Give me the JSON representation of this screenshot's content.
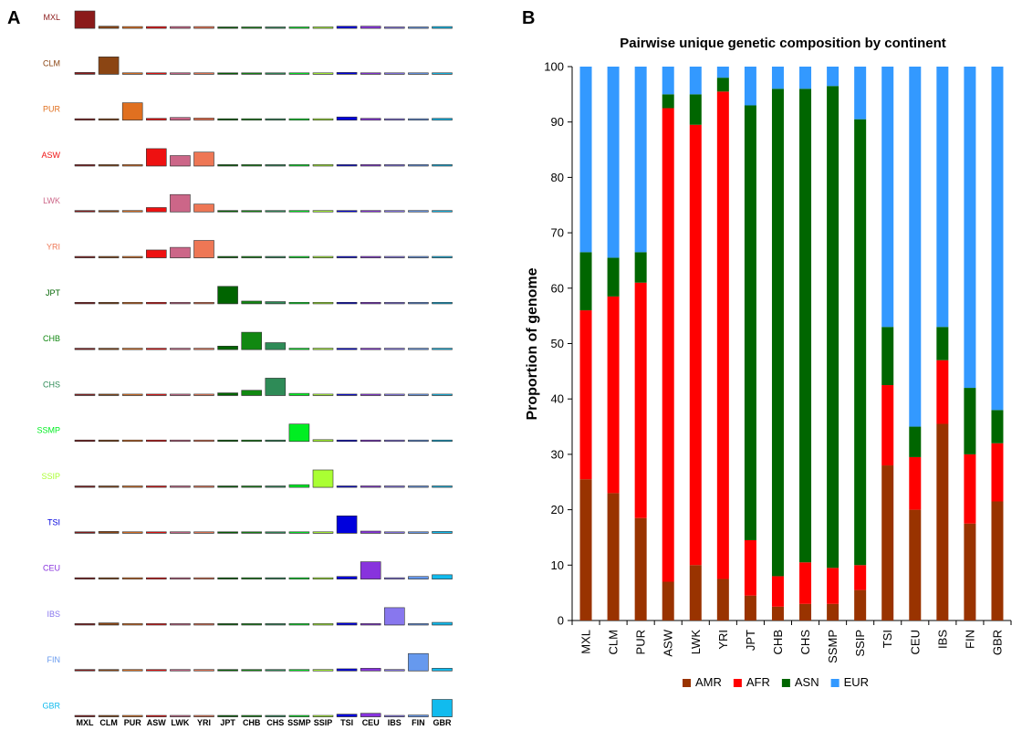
{
  "panel_a_letter": "A",
  "panel_b_letter": "B",
  "chart_data": [
    {
      "type": "heatmap",
      "panel": "A",
      "rows": [
        "MXL",
        "CLM",
        "PUR",
        "ASW",
        "LWK",
        "YRI",
        "JPT",
        "CHB",
        "CHS",
        "SSMP",
        "SSIP",
        "TSI",
        "CEU",
        "IBS",
        "FIN",
        "GBR"
      ],
      "columns": [
        "MXL",
        "CLM",
        "PUR",
        "ASW",
        "LWK",
        "YRI",
        "JPT",
        "CHB",
        "CHS",
        "SSMP",
        "SSIP",
        "TSI",
        "CEU",
        "IBS",
        "FIN",
        "GBR"
      ],
      "row_colors": [
        "#8b1a1a",
        "#8b4513",
        "#e07020",
        "#ee1111",
        "#cc6688",
        "#ee7755",
        "#006400",
        "#118811",
        "#2e8b57",
        "#00ee22",
        "#aaff33",
        "#0000dd",
        "#8833dd",
        "#8877ee",
        "#6699ee",
        "#11bbee"
      ],
      "values": [
        [
          1.0,
          0.12,
          0.1,
          0.1,
          0.1,
          0.1,
          0.03,
          0.03,
          0.03,
          0.02,
          0.02,
          0.12,
          0.12,
          0.03,
          0.03,
          0.1
        ],
        [
          0.1,
          1.0,
          0.08,
          0.08,
          0.08,
          0.08,
          0.03,
          0.03,
          0.03,
          0.02,
          0.02,
          0.1,
          0.08,
          0.03,
          0.03,
          0.08
        ],
        [
          0.08,
          0.06,
          1.0,
          0.1,
          0.15,
          0.12,
          0.03,
          0.03,
          0.03,
          0.02,
          0.02,
          0.18,
          0.1,
          0.08,
          0.06,
          0.1
        ],
        [
          0.03,
          0.03,
          0.03,
          1.0,
          0.6,
          0.8,
          0.02,
          0.02,
          0.02,
          0.02,
          0.02,
          0.03,
          0.03,
          0.02,
          0.02,
          0.03
        ],
        [
          0.02,
          0.03,
          0.03,
          0.25,
          1.0,
          0.45,
          0.02,
          0.02,
          0.02,
          0.02,
          0.02,
          0.02,
          0.02,
          0.02,
          0.02,
          0.02
        ],
        [
          0.03,
          0.03,
          0.03,
          0.45,
          0.6,
          1.0,
          0.02,
          0.02,
          0.02,
          0.02,
          0.02,
          0.02,
          0.02,
          0.02,
          0.02,
          0.02
        ],
        [
          0.02,
          0.02,
          0.02,
          0.02,
          0.02,
          0.02,
          1.0,
          0.15,
          0.12,
          0.05,
          0.02,
          0.02,
          0.02,
          0.02,
          0.02,
          0.02
        ],
        [
          0.02,
          0.02,
          0.02,
          0.02,
          0.02,
          0.02,
          0.2,
          1.0,
          0.4,
          0.08,
          0.02,
          0.02,
          0.02,
          0.02,
          0.02,
          0.02
        ],
        [
          0.03,
          0.03,
          0.03,
          0.03,
          0.03,
          0.03,
          0.15,
          0.3,
          1.0,
          0.12,
          0.02,
          0.03,
          0.03,
          0.02,
          0.03,
          0.03
        ],
        [
          0.02,
          0.02,
          0.02,
          0.02,
          0.02,
          0.02,
          0.03,
          0.05,
          0.05,
          1.0,
          0.1,
          0.02,
          0.02,
          0.02,
          0.02,
          0.02
        ],
        [
          0.02,
          0.02,
          0.02,
          0.02,
          0.02,
          0.02,
          0.02,
          0.02,
          0.02,
          0.15,
          1.0,
          0.02,
          0.02,
          0.02,
          0.02,
          0.02
        ],
        [
          0.08,
          0.1,
          0.08,
          0.05,
          0.08,
          0.05,
          0.02,
          0.02,
          0.02,
          0.02,
          0.02,
          1.0,
          0.12,
          0.05,
          0.08,
          0.1
        ],
        [
          0.05,
          0.06,
          0.05,
          0.05,
          0.05,
          0.03,
          0.02,
          0.02,
          0.02,
          0.02,
          0.02,
          0.15,
          1.0,
          0.03,
          0.15,
          0.25
        ],
        [
          0.08,
          0.12,
          0.08,
          0.05,
          0.05,
          0.03,
          0.02,
          0.02,
          0.02,
          0.02,
          0.02,
          0.12,
          0.08,
          1.0,
          0.05,
          0.15
        ],
        [
          0.02,
          0.02,
          0.02,
          0.02,
          0.02,
          0.02,
          0.02,
          0.02,
          0.02,
          0.02,
          0.02,
          0.12,
          0.15,
          0.02,
          1.0,
          0.15
        ],
        [
          0.05,
          0.05,
          0.05,
          0.03,
          0.05,
          0.03,
          0.02,
          0.02,
          0.02,
          0.02,
          0.02,
          0.15,
          0.2,
          0.02,
          0.1,
          1.0
        ]
      ]
    },
    {
      "type": "bar",
      "stacked": true,
      "panel": "B",
      "title": "Pairwise unique genetic composition by continent",
      "xlabel": "",
      "ylabel": "Proportion of genome",
      "ylim": [
        0,
        100
      ],
      "yticks": [
        0,
        10,
        20,
        30,
        40,
        50,
        60,
        70,
        80,
        90,
        100
      ],
      "grid": false,
      "legend_position": "bottom",
      "categories": [
        "MXL",
        "CLM",
        "PUR",
        "ASW",
        "LWK",
        "YRI",
        "JPT",
        "CHB",
        "CHS",
        "SSMP",
        "SSIP",
        "TSI",
        "CEU",
        "IBS",
        "FIN",
        "GBR"
      ],
      "series": [
        {
          "name": "AMR",
          "color": "#993300",
          "values": [
            25.5,
            23,
            18.5,
            7,
            10,
            7.5,
            4.5,
            2.5,
            3,
            3,
            5.5,
            28,
            20,
            35.5,
            17.5,
            21.5
          ]
        },
        {
          "name": "AFR",
          "color": "#ff0000",
          "values": [
            30.5,
            35.5,
            42.5,
            85.5,
            79.5,
            88,
            10,
            5.5,
            7.5,
            6.5,
            4.5,
            14.5,
            9.5,
            11.5,
            12.5,
            10.5
          ]
        },
        {
          "name": "ASN",
          "color": "#006600",
          "values": [
            10.5,
            7,
            5.5,
            2.5,
            5.5,
            2.5,
            78.5,
            88,
            85.5,
            87,
            80.5,
            10.5,
            5.5,
            6,
            12,
            6
          ]
        },
        {
          "name": "EUR",
          "color": "#3399ff",
          "values": [
            33.5,
            34.5,
            33.5,
            5,
            5,
            2,
            7,
            4,
            4,
            3.5,
            9.5,
            47,
            65,
            47,
            58,
            62
          ]
        }
      ]
    }
  ]
}
